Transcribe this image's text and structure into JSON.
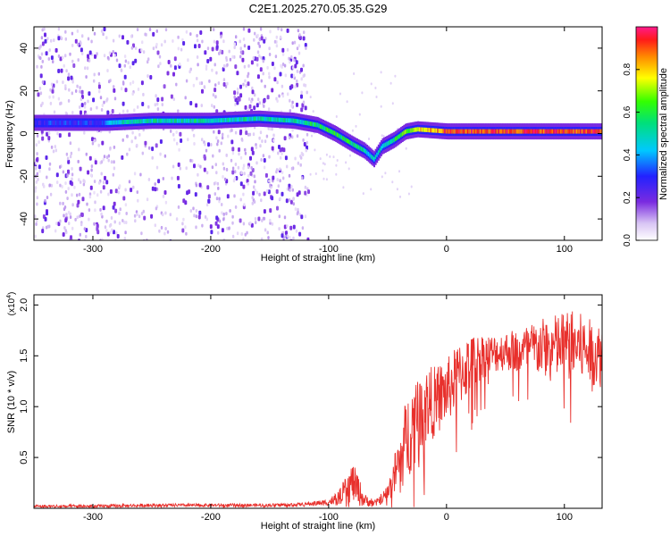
{
  "figure_title": "C2E1.2025.270.05.35.G29",
  "chart_data": [
    {
      "type": "heatmap",
      "name": "spectrogram",
      "title": "C2E1.2025.270.05.35.G29",
      "xlabel": "Height of straight line (km)",
      "ylabel": "Frequency (Hz)",
      "xlim": [
        -350,
        132
      ],
      "ylim": [
        -50,
        50
      ],
      "xticks": [
        -300,
        -200,
        -100,
        0,
        100
      ],
      "yticks": [
        -40,
        -20,
        0,
        20,
        40
      ],
      "colorbar": {
        "label": "Normalized spectral amplitude",
        "range": [
          0.0,
          1.0
        ],
        "ticks": [
          "0.0",
          "0.2",
          "0.4",
          "0.6",
          "0.8"
        ],
        "tick_values": [
          0.0,
          0.2,
          0.4,
          0.6,
          0.8
        ]
      },
      "noise_region_x": [
        -350,
        -118
      ],
      "ridge": {
        "description": "dominant frequency trace vs height",
        "x": [
          -290,
          -250,
          -200,
          -160,
          -130,
          -110,
          -95,
          -80,
          -70,
          -62,
          -55,
          -45,
          -35,
          -25,
          0,
          50,
          100,
          132
        ],
        "frequency": [
          5,
          6,
          6,
          7,
          6,
          4,
          0,
          -5,
          -8,
          -12,
          -6,
          -3,
          1,
          2,
          1,
          1,
          1,
          1
        ],
        "amplitude": [
          0.45,
          0.5,
          0.5,
          0.5,
          0.5,
          0.55,
          0.6,
          0.55,
          0.5,
          0.45,
          0.5,
          0.55,
          0.65,
          0.75,
          0.9,
          0.92,
          0.92,
          0.9
        ]
      }
    },
    {
      "type": "line",
      "name": "snr",
      "xlabel": "Height of straight line (km)",
      "ylabel": "SNR (10 * v/v)",
      "y_scale_label": "(x10",
      "y_scale_exponent": "4",
      "xlim": [
        -350,
        132
      ],
      "ylim": [
        0,
        2.1
      ],
      "xticks": [
        -300,
        -200,
        -100,
        0,
        100
      ],
      "yticks": [
        0.5,
        1.0,
        1.5,
        2.0
      ],
      "yticklabels": [
        "0.5",
        "1.0",
        "1.5",
        "2.0"
      ],
      "color": "#e8302c",
      "series": [
        {
          "name": "SNR",
          "x": [
            -350,
            -300,
            -250,
            -200,
            -150,
            -120,
            -100,
            -90,
            -85,
            -80,
            -75,
            -70,
            -60,
            -50,
            -45,
            -40,
            -35,
            -30,
            -25,
            -20,
            -10,
            0,
            10,
            20,
            30,
            40,
            50,
            60,
            70,
            80,
            90,
            100,
            110,
            120,
            132
          ],
          "y": [
            0.02,
            0.02,
            0.03,
            0.03,
            0.03,
            0.04,
            0.06,
            0.12,
            0.18,
            0.26,
            0.18,
            0.08,
            0.05,
            0.15,
            0.3,
            0.45,
            0.65,
            0.8,
            0.9,
            1.0,
            1.05,
            1.15,
            1.3,
            1.42,
            1.5,
            1.52,
            1.55,
            1.55,
            1.56,
            1.58,
            1.58,
            1.6,
            1.6,
            1.55,
            1.5
          ],
          "noise_amplitude": [
            0.01,
            0.01,
            0.01,
            0.01,
            0.01,
            0.01,
            0.02,
            0.05,
            0.1,
            0.12,
            0.1,
            0.04,
            0.02,
            0.05,
            0.12,
            0.2,
            0.25,
            0.28,
            0.28,
            0.25,
            0.22,
            0.2,
            0.2,
            0.18,
            0.14,
            0.12,
            0.12,
            0.14,
            0.16,
            0.18,
            0.2,
            0.22,
            0.22,
            0.2,
            0.2
          ]
        }
      ]
    }
  ]
}
